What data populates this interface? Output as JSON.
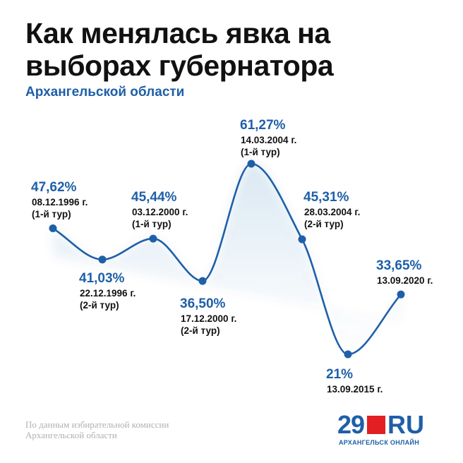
{
  "header": {
    "title": "Как менялась явка на выборах губернатора",
    "subtitle": "Архангельской области"
  },
  "footer": {
    "source_line1": "По данным избирательной комиссии",
    "source_line2": "Архангельской области"
  },
  "logo": {
    "number": "29",
    "suffix": "RU",
    "tagline": "АРХАНГЕЛЬСК ОНЛАЙН",
    "square_color": "#e31e24"
  },
  "colors": {
    "accent": "#1e5fa8",
    "line": "#1e5fa8",
    "label_text": "#111111"
  },
  "chart_data": {
    "type": "line",
    "title": "Как менялась явка на выборах губернатора Архангельской области",
    "xlabel": "",
    "ylabel": "",
    "ylim": [
      21,
      61.27
    ],
    "grid": false,
    "legend": "none",
    "smooth": true,
    "values": [
      47.62,
      41.03,
      45.44,
      36.5,
      61.27,
      45.31,
      21,
      33.65
    ],
    "points": [
      {
        "value": 47.62,
        "label": "47,62%",
        "date": "08.12.1996 г.",
        "round": "(1-й тур)",
        "label_pos": "above"
      },
      {
        "value": 41.03,
        "label": "41,03%",
        "date": "22.12.1996 г.",
        "round": "(2-й тур)",
        "label_pos": "below"
      },
      {
        "value": 45.44,
        "label": "45,44%",
        "date": "03.12.2000 г.",
        "round": "(1-й тур)",
        "label_pos": "above"
      },
      {
        "value": 36.5,
        "label": "36,50%",
        "date": "17.12.2000 г.",
        "round": "(2-й тур)",
        "label_pos": "below"
      },
      {
        "value": 61.27,
        "label": "61,27%",
        "date": "14.03.2004 г.",
        "round": "(1-й тур)",
        "label_pos": "above"
      },
      {
        "value": 45.31,
        "label": "45,31%",
        "date": "28.03.2004 г.",
        "round": "(2-й тур)",
        "label_pos": "above"
      },
      {
        "value": 21,
        "label": "21%",
        "date": "13.09.2015 г.",
        "round": "",
        "label_pos": "below"
      },
      {
        "value": 33.65,
        "label": "33,65%",
        "date": "13.09.2020 г.",
        "round": "",
        "label_pos": "above"
      }
    ]
  }
}
